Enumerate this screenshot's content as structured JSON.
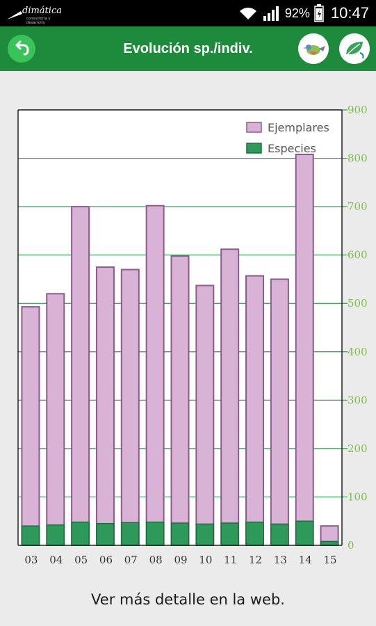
{
  "status_bar": {
    "logo_text": "dimática",
    "logo_subtext": "consultoría y desarrollo",
    "battery": "92%",
    "time": "10:47"
  },
  "app_bar": {
    "title": "Evolución sp./indiv.",
    "back_icon": "back-arrow-icon",
    "bird_icon": "bird-icon",
    "leaf_icon": "leaf-icon"
  },
  "colors": {
    "app_bar": "#1e8a3c",
    "ejemplares_fill": "#d8b3d6",
    "ejemplares_stroke": "#8e5a8e",
    "especies_fill": "#2e9a5a",
    "especies_stroke": "#1d6e3e",
    "grid": "#2e9a4e",
    "axis_tick_text": "#7ac043"
  },
  "chart_data": {
    "type": "bar",
    "categories": [
      "03",
      "04",
      "05",
      "06",
      "07",
      "08",
      "09",
      "10",
      "11",
      "12",
      "13",
      "14",
      "15"
    ],
    "series": [
      {
        "name": "Ejemplares",
        "values": [
          493,
          520,
          700,
          575,
          570,
          702,
          598,
          537,
          612,
          557,
          550,
          808,
          40
        ]
      },
      {
        "name": "Especies",
        "values": [
          40,
          42,
          48,
          45,
          47,
          48,
          46,
          44,
          46,
          48,
          44,
          50,
          8
        ]
      }
    ],
    "ylim": [
      0,
      900
    ],
    "yticks": [
      0,
      100,
      200,
      300,
      400,
      500,
      600,
      700,
      800,
      900
    ],
    "y_axis_side": "right",
    "legend": {
      "placement": "top-right",
      "entries": [
        "Ejemplares",
        "Especies"
      ]
    },
    "grid": true
  },
  "footer": {
    "link_text": "Ver más detalle en la web."
  }
}
